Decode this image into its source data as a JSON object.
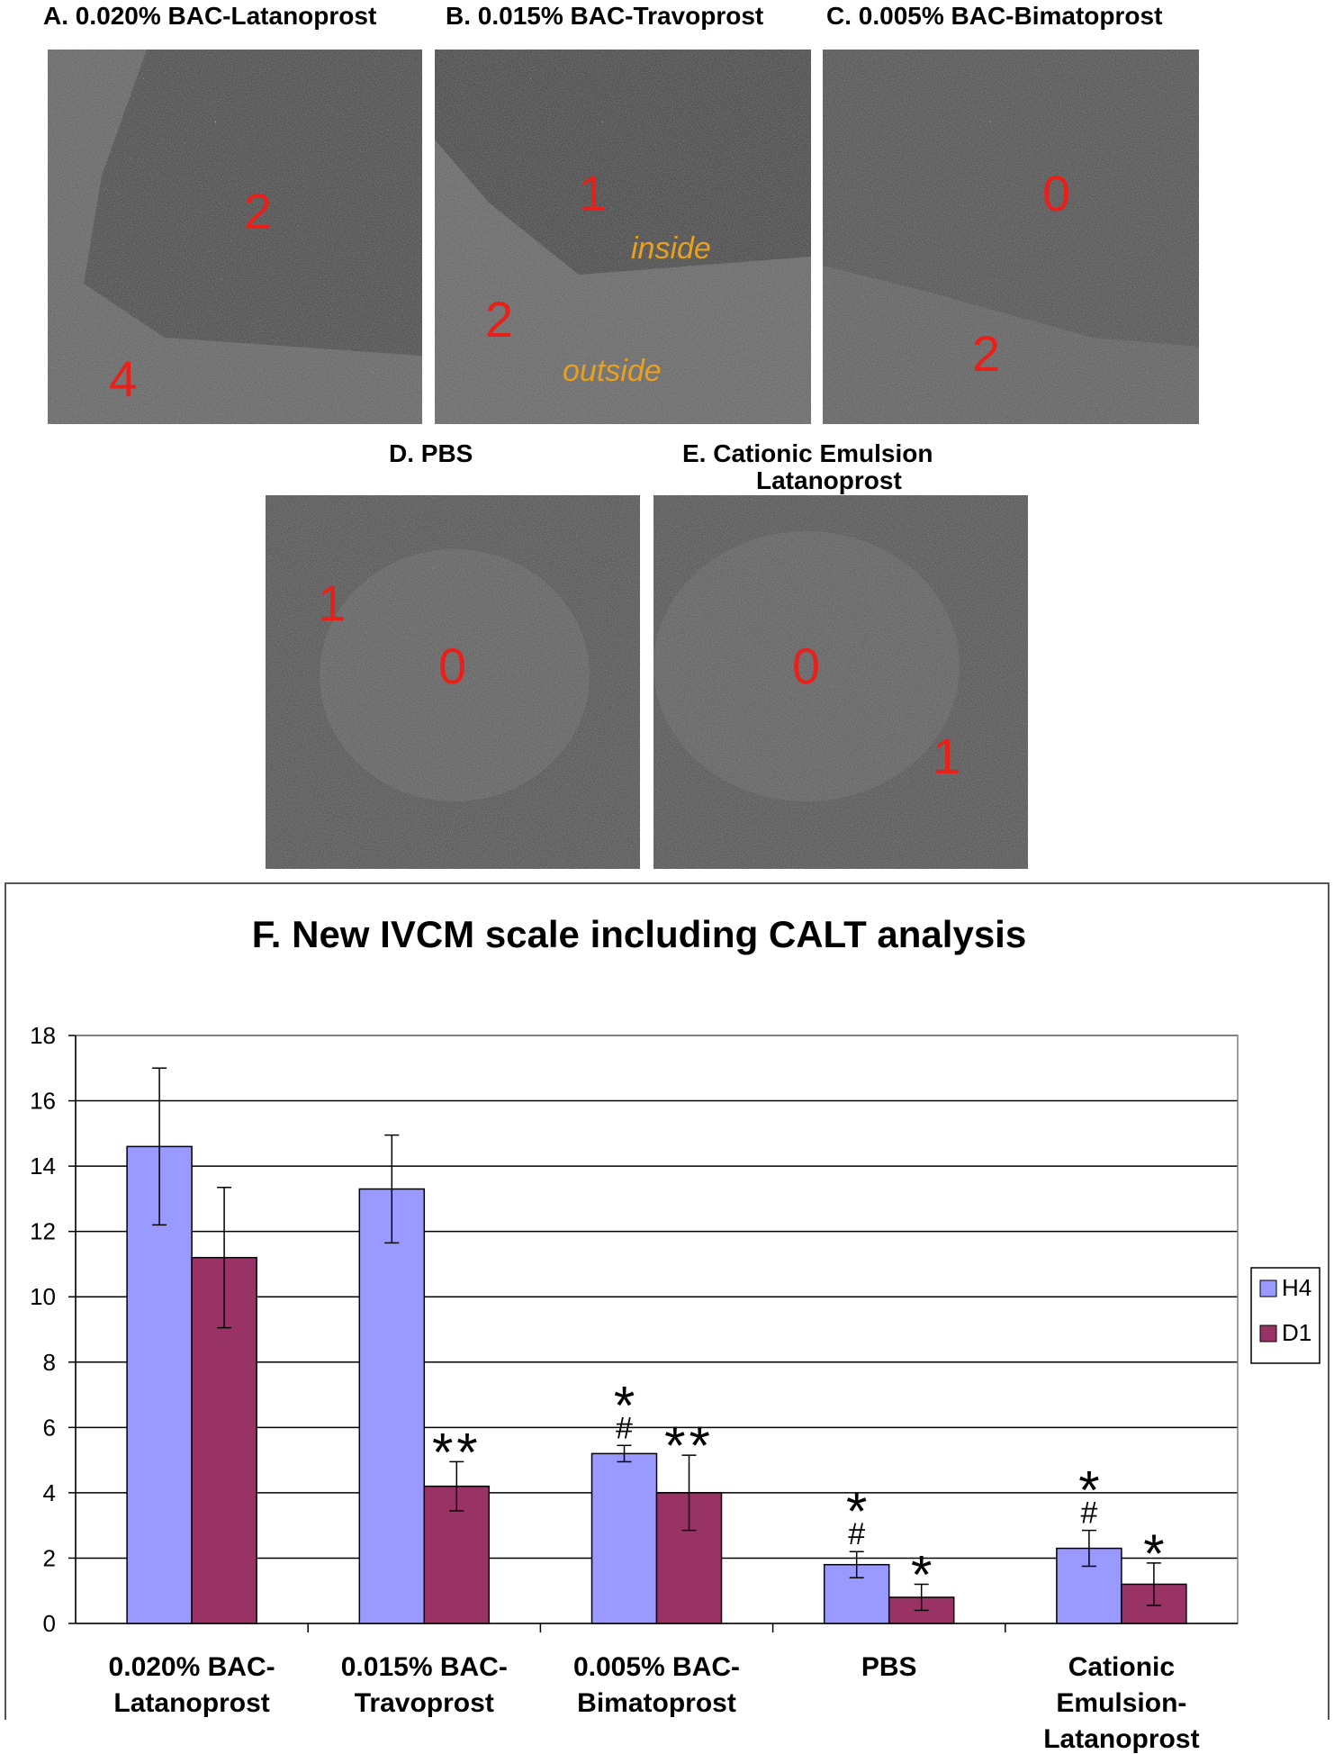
{
  "panels": {
    "a": {
      "title": "A. 0.020% BAC-Latanoprost",
      "scores": [
        "2",
        "4"
      ]
    },
    "b": {
      "title": "B. 0.015% BAC-Travoprost",
      "scores": [
        "1",
        "2"
      ],
      "labels": [
        "inside",
        "outside"
      ]
    },
    "c": {
      "title": "C. 0.005% BAC-Bimatoprost",
      "scores": [
        "0",
        "2"
      ]
    },
    "d": {
      "title": "D. PBS",
      "scores": [
        "1",
        "0"
      ]
    },
    "e": {
      "title_line1": "E. Cationic Emulsion",
      "title_line2": "Latanoprost",
      "scores": [
        "0",
        "1"
      ]
    }
  },
  "colors": {
    "h4": "#9999ff",
    "d1": "#993366",
    "score": "#e8201a",
    "annotation": "#e8a020"
  },
  "chart_data": {
    "type": "bar",
    "title": "F.   New IVCM scale including CALT analysis",
    "categories": [
      [
        "0.020% BAC-",
        "Latanoprost"
      ],
      [
        "0.015% BAC-",
        "Travoprost"
      ],
      [
        "0.005% BAC-",
        "Bimatoprost"
      ],
      [
        "PBS"
      ],
      [
        "Cationic",
        "Emulsion-",
        "Latanoprost"
      ]
    ],
    "series": [
      {
        "name": "H4",
        "values": [
          14.6,
          13.3,
          5.2,
          1.8,
          2.3
        ],
        "err": [
          2.4,
          1.65,
          0.25,
          0.4,
          0.55
        ]
      },
      {
        "name": "D1",
        "values": [
          11.2,
          4.2,
          4.0,
          0.8,
          1.2
        ],
        "err": [
          2.15,
          0.75,
          1.15,
          0.4,
          0.65
        ]
      }
    ],
    "annotations": {
      "H4": [
        "",
        "",
        "*\n#",
        "*\n#",
        "*\n#"
      ],
      "D1": [
        "",
        "**",
        "**",
        "*",
        "*"
      ]
    },
    "ylim": [
      0,
      18
    ],
    "yticks": [
      0,
      2,
      4,
      6,
      8,
      10,
      12,
      14,
      16,
      18
    ],
    "grid": true,
    "legend": "right"
  }
}
